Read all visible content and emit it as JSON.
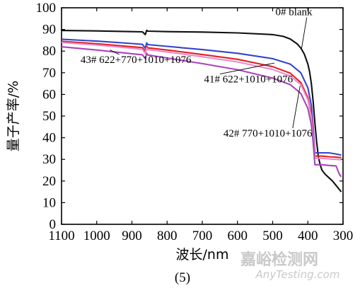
{
  "chart_data": {
    "type": "line",
    "title": "",
    "xlabel": "波长/nm",
    "ylabel": "量子产率/%",
    "xlim": [
      1100,
      300
    ],
    "ylim": [
      0,
      100
    ],
    "x_reversed": true,
    "grid": false,
    "x_ticks": [
      1100,
      1000,
      900,
      800,
      700,
      600,
      500,
      400,
      300
    ],
    "y_ticks": [
      0,
      10,
      20,
      30,
      40,
      50,
      60,
      70,
      80,
      90,
      100
    ],
    "caption": "(5)",
    "series": [
      {
        "name": "0# blank",
        "color": "#111111",
        "x": [
          1100,
          1000,
          900,
          870,
          862,
          858,
          855,
          800,
          700,
          600,
          500,
          470,
          450,
          430,
          420,
          410,
          400,
          395,
          390,
          385,
          380,
          375,
          370,
          365,
          360,
          350,
          340,
          330,
          320,
          310,
          305
        ],
        "y": [
          89.5,
          89.3,
          89.0,
          88.9,
          87.6,
          89.6,
          89.2,
          89.0,
          88.8,
          88.4,
          87.6,
          86.8,
          85.6,
          83.3,
          81.4,
          78.6,
          74.0,
          70.5,
          65.0,
          57.0,
          47.0,
          38.0,
          31.0,
          27.5,
          25.0,
          23.0,
          21.5,
          20.0,
          18.0,
          16.0,
          15.0
        ]
      },
      {
        "name": "",
        "color": "#3344cc",
        "x": [
          1100,
          1000,
          900,
          870,
          862,
          858,
          855,
          800,
          700,
          600,
          500,
          450,
          420,
          400,
          390,
          385,
          380,
          370,
          360,
          340,
          320,
          305
        ],
        "y": [
          85.5,
          84.6,
          83.5,
          83.1,
          81.3,
          83.8,
          83.0,
          82.2,
          80.7,
          79.0,
          76.5,
          74.0,
          70.0,
          63.0,
          55.0,
          45.0,
          33.0,
          33.0,
          33.0,
          33.0,
          32.5,
          32.0
        ]
      },
      {
        "name": "41# 622+1010+1076",
        "color": "#dd2222",
        "x": [
          1100,
          1000,
          900,
          870,
          862,
          858,
          855,
          800,
          700,
          600,
          500,
          450,
          420,
          400,
          390,
          385,
          380,
          370,
          360,
          340,
          320,
          305
        ],
        "y": [
          84.5,
          83.4,
          82.0,
          81.6,
          79.8,
          82.3,
          81.5,
          80.5,
          78.4,
          76.2,
          72.8,
          69.8,
          65.5,
          58.5,
          50.5,
          42.0,
          31.5,
          31.5,
          31.5,
          31.2,
          31.0,
          30.8
        ]
      },
      {
        "name": "43# 622+770+1010+1076",
        "color": "#ee88cc",
        "x": [
          1100,
          1000,
          900,
          870,
          862,
          858,
          855,
          800,
          700,
          600,
          500,
          450,
          420,
          400,
          390,
          385,
          380,
          370,
          360,
          340,
          320,
          305
        ],
        "y": [
          84.0,
          82.8,
          81.3,
          80.8,
          79.0,
          81.5,
          80.7,
          79.6,
          77.4,
          75.0,
          71.5,
          68.5,
          64.5,
          57.5,
          49.5,
          41.0,
          30.5,
          30.5,
          30.5,
          30.2,
          30.0,
          29.8
        ]
      },
      {
        "name": "42# 770+1010+1076",
        "color": "#aa44bb",
        "x": [
          1100,
          1000,
          900,
          870,
          862,
          858,
          855,
          800,
          700,
          600,
          500,
          450,
          420,
          400,
          390,
          385,
          380,
          370,
          360,
          340,
          320,
          310,
          305
        ],
        "y": [
          82.0,
          80.5,
          78.8,
          78.3,
          76.5,
          79.0,
          78.2,
          76.8,
          74.2,
          71.4,
          67.5,
          64.5,
          60.5,
          53.5,
          46.0,
          38.0,
          27.5,
          27.5,
          27.5,
          27.2,
          27.0,
          23.0,
          22.0
        ]
      }
    ],
    "annotations": [
      {
        "text": "0# blank",
        "x": 492,
        "y": 96.5,
        "arrow_to_x": 418,
        "arrow_to_y": 81
      },
      {
        "text": "43# 622+770+1010+1076",
        "x": 1046,
        "y": 74.5,
        "arrow_to_x": 962,
        "arrow_to_y": 80.5
      },
      {
        "text": "41# 622+1010+1076",
        "x": 695,
        "y": 65.5,
        "arrow_to_x": 495,
        "arrow_to_y": 74.5
      },
      {
        "text": "42# 770+1010+1076",
        "x": 640,
        "y": 40.5,
        "arrow_to_x": 422,
        "arrow_to_y": 64
      }
    ]
  },
  "watermark": {
    "line1": "嘉峪检测网",
    "line2": "AnyTesting.com"
  }
}
